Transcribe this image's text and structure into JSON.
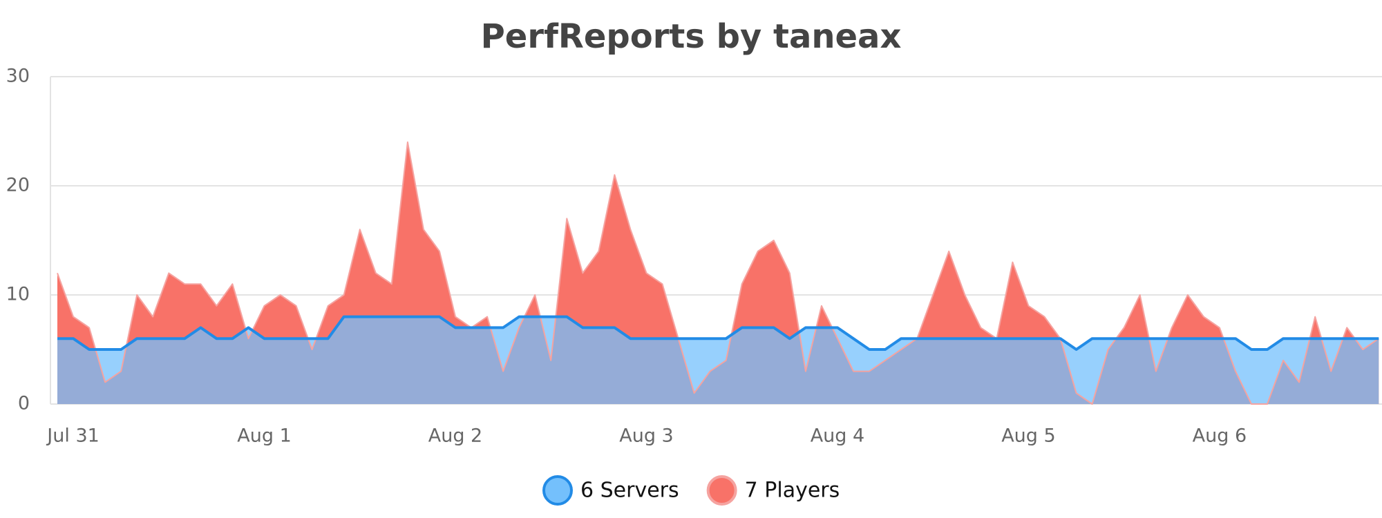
{
  "chart_data": {
    "type": "area",
    "title": "PerfReports by taneax",
    "categories": [
      null,
      "Jul 31",
      null,
      null,
      null,
      null,
      null,
      null,
      null,
      null,
      null,
      null,
      null,
      "Aug 1",
      null,
      null,
      null,
      null,
      null,
      null,
      null,
      null,
      null,
      null,
      null,
      "Aug 2",
      null,
      null,
      null,
      null,
      null,
      null,
      null,
      null,
      null,
      null,
      null,
      "Aug 3",
      null,
      null,
      null,
      null,
      null,
      null,
      null,
      null,
      null,
      null,
      null,
      "Aug 4",
      null,
      null,
      null,
      null,
      null,
      null,
      null,
      null,
      null,
      null,
      null,
      "Aug 5",
      null,
      null,
      null,
      null,
      null,
      null,
      null,
      null,
      null,
      null,
      null,
      "Aug 6",
      null,
      null,
      null,
      null,
      null,
      null,
      null,
      null,
      null,
      null
    ],
    "series": [
      {
        "name": "6 Servers",
        "color": "#74c0fc",
        "line_color": "#228be6",
        "values": [
          6,
          6,
          5,
          5,
          5,
          6,
          6,
          6,
          6,
          7,
          6,
          6,
          7,
          6,
          6,
          6,
          6,
          6,
          8,
          8,
          8,
          8,
          8,
          8,
          8,
          7,
          7,
          7,
          7,
          8,
          8,
          8,
          8,
          7,
          7,
          7,
          6,
          6,
          6,
          6,
          6,
          6,
          6,
          7,
          7,
          7,
          6,
          7,
          7,
          7,
          6,
          5,
          5,
          6,
          6,
          6,
          6,
          6,
          6,
          6,
          6,
          6,
          6,
          6,
          5,
          6,
          6,
          6,
          6,
          6,
          6,
          6,
          6,
          6,
          6,
          5,
          5,
          6,
          6,
          6,
          6,
          6,
          6,
          6
        ]
      },
      {
        "name": "7 Players",
        "color": "#f87268",
        "line_color": "#f5a3a0",
        "values": [
          12,
          8,
          7,
          2,
          3,
          10,
          8,
          12,
          11,
          11,
          9,
          11,
          6,
          9,
          10,
          9,
          5,
          9,
          10,
          16,
          12,
          11,
          24,
          16,
          14,
          8,
          7,
          8,
          3,
          7,
          10,
          4,
          17,
          12,
          14,
          21,
          16,
          12,
          11,
          6,
          1,
          3,
          4,
          11,
          14,
          15,
          12,
          3,
          9,
          6,
          3,
          3,
          4,
          5,
          6,
          10,
          14,
          10,
          7,
          6,
          13,
          9,
          8,
          6,
          1,
          0,
          5,
          7,
          10,
          3,
          7,
          10,
          8,
          7,
          3,
          0,
          0,
          4,
          2,
          8,
          3,
          7,
          5,
          6
        ]
      }
    ],
    "ylim": [
      0,
      30
    ],
    "yticks": [
      0,
      10,
      20,
      30
    ],
    "grid": true
  }
}
